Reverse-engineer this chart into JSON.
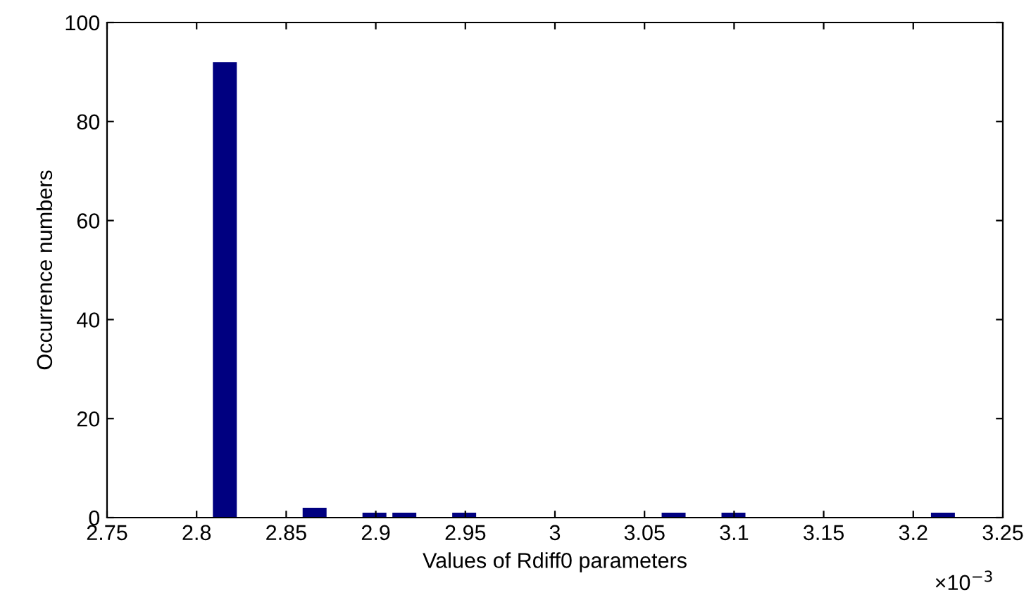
{
  "chart_data": {
    "type": "histogram",
    "xlabel": "Values of Rdiff0 parameters",
    "ylabel": "Occurrence numbers",
    "annotations": [
      "×10$^{−3}$"
    ],
    "bins": [
      2.8074,
      2.8241,
      2.8408,
      2.8575,
      2.8742,
      2.8909,
      2.9076,
      2.9243,
      2.941,
      2.9577,
      2.9744,
      2.9911,
      3.0078,
      3.0245,
      3.0412,
      3.0579,
      3.0746,
      3.0913,
      3.108,
      3.1247,
      3.1414,
      3.1581,
      3.1748,
      3.1915,
      3.2082,
      3.2249
    ],
    "values": [
      92,
      0,
      0,
      2,
      0,
      1,
      1,
      0,
      1,
      0,
      0,
      0,
      0,
      0,
      0,
      1,
      0,
      1,
      0,
      0,
      0,
      0,
      0,
      0,
      1
    ],
    "color": "#000080",
    "xlim": [
      2.75,
      3.25
    ],
    "xticks": [
      2.75,
      2.8,
      2.85,
      2.9,
      2.95,
      3,
      3.05,
      3.1,
      3.15,
      3.2,
      3.25
    ],
    "ylim": [
      0,
      100
    ],
    "yticks": [
      0,
      20,
      40,
      60,
      80,
      100
    ],
    "grid": false
  }
}
